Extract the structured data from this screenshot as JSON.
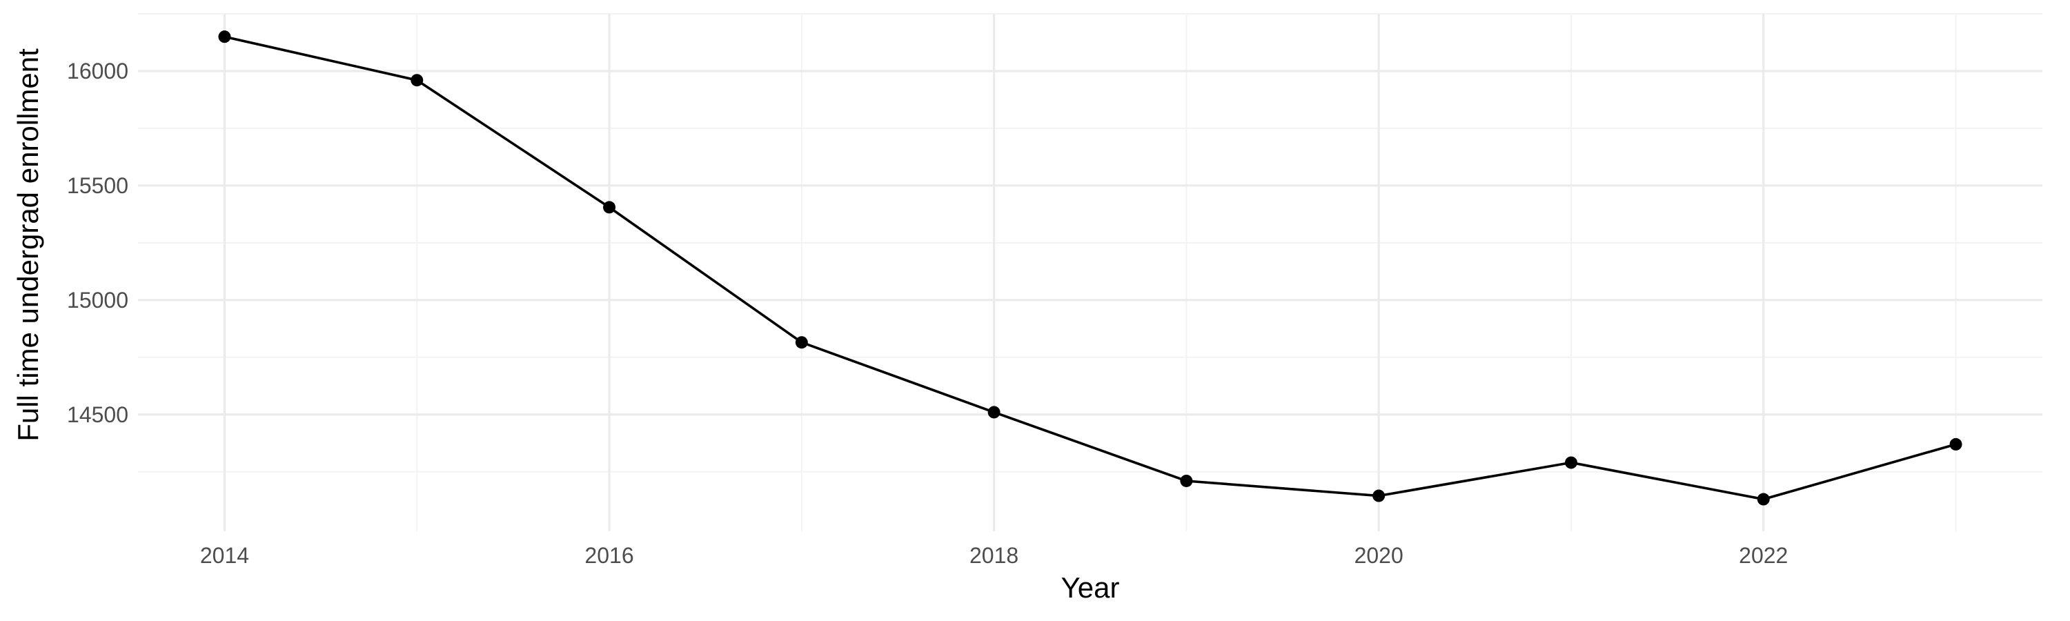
{
  "chart_data": {
    "type": "line",
    "title": "",
    "xlabel": "Year",
    "ylabel": "Full time undergrad enrollment",
    "x": [
      2014,
      2015,
      2016,
      2017,
      2018,
      2019,
      2020,
      2021,
      2022,
      2023
    ],
    "series": [
      {
        "values": [
          16150,
          15960,
          15405,
          14815,
          14510,
          14210,
          14145,
          14290,
          14130,
          14370
        ]
      }
    ],
    "xlim": [
      2013.55,
      2023.45
    ],
    "ylim": [
      13990,
      16250
    ],
    "x_ticks": [
      2014,
      2016,
      2018,
      2020,
      2022
    ],
    "x_tick_labels": [
      "2014",
      "2016",
      "2018",
      "2020",
      "2022"
    ],
    "y_ticks": [
      14500,
      15000,
      15500,
      16000
    ],
    "y_tick_labels": [
      "14500",
      "15000",
      "15500",
      "16000"
    ],
    "grid": true,
    "legend": "none",
    "colors": {
      "line": "#000000",
      "grid": "#ebebeb",
      "background": "#ffffff",
      "tick_text": "#4d4d4d"
    }
  }
}
